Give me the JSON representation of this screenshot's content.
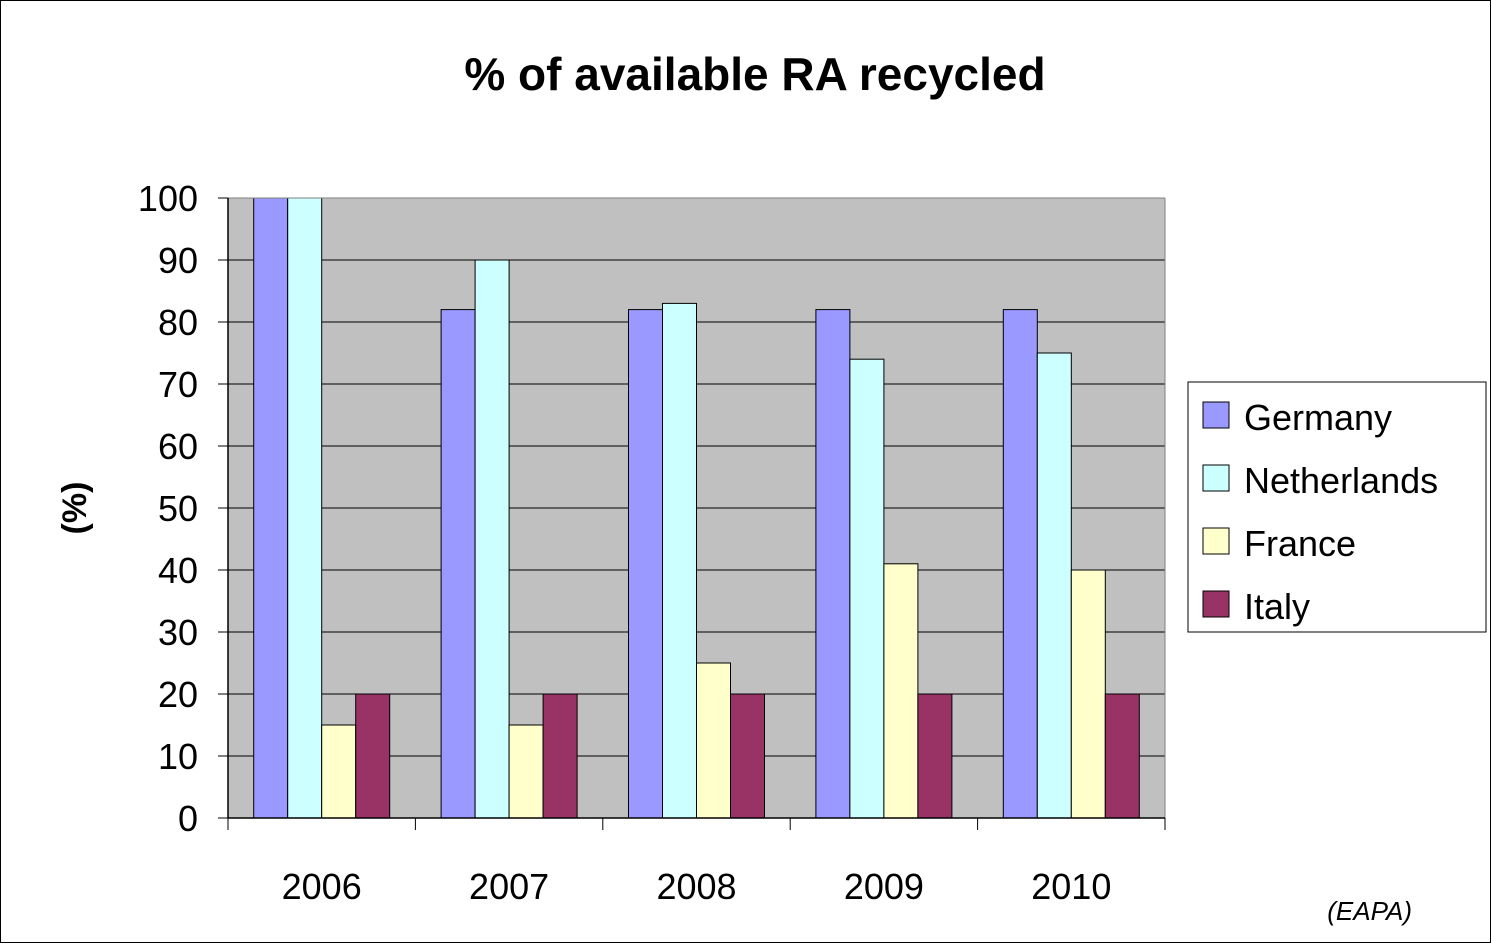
{
  "chart_data": {
    "type": "bar",
    "title": "% of available RA recycled",
    "ylabel": "(%)",
    "xlabel": "",
    "source_note": "(EAPA)",
    "categories": [
      "2006",
      "2007",
      "2008",
      "2009",
      "2010"
    ],
    "ylim": [
      0,
      100
    ],
    "yticks": [
      0,
      10,
      20,
      30,
      40,
      50,
      60,
      70,
      80,
      90,
      100
    ],
    "grid": true,
    "plot_background": "#c0c0c0",
    "legend_position": "right",
    "series": [
      {
        "name": "Germany",
        "color": "#9999ff",
        "values": [
          100,
          82,
          82,
          82,
          82
        ]
      },
      {
        "name": "Netherlands",
        "color": "#ccffff",
        "values": [
          100,
          90,
          83,
          74,
          75
        ]
      },
      {
        "name": "France",
        "color": "#ffffcc",
        "values": [
          15,
          15,
          25,
          41,
          40
        ]
      },
      {
        "name": "Italy",
        "color": "#993366",
        "values": [
          20,
          20,
          20,
          20,
          20
        ]
      }
    ]
  }
}
